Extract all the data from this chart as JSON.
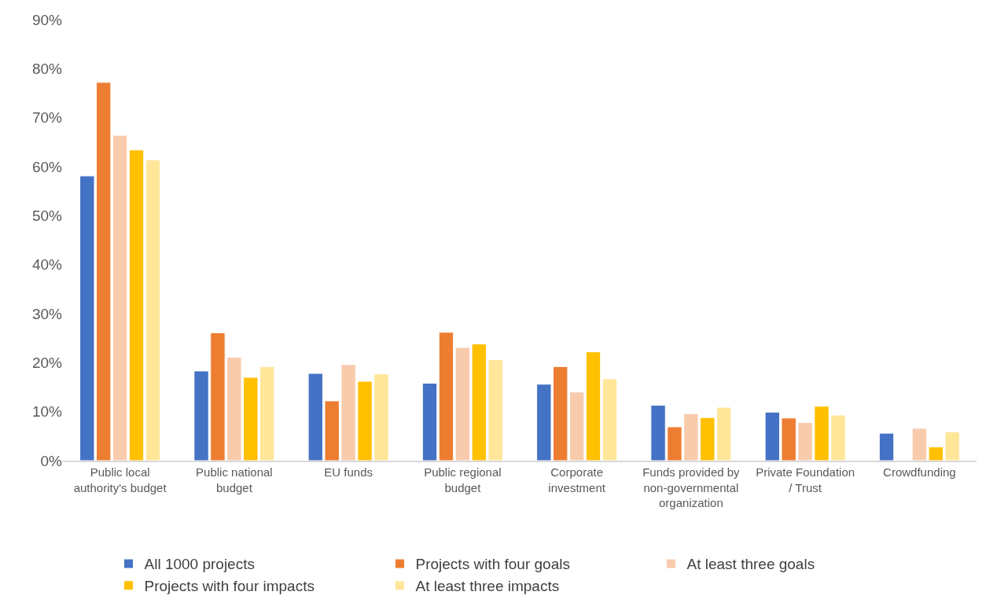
{
  "chart_data": {
    "type": "bar",
    "categories": [
      "Public local authority's budget",
      "Public national budget",
      "EU funds",
      "Public regional budget",
      "Corporate investment",
      "Funds provided by non-governmental organization",
      "Private Foundation / Trust",
      "Crowdfunding"
    ],
    "series": [
      {
        "name": "All 1000 projects",
        "color": "#4472c4",
        "values": [
          58.1,
          18.3,
          17.8,
          15.8,
          15.6,
          11.3,
          9.9,
          5.6
        ]
      },
      {
        "name": "Projects with four goals",
        "color": "#ed7d31",
        "values": [
          77.2,
          26.1,
          12.2,
          26.2,
          19.2,
          6.9,
          8.7,
          null
        ]
      },
      {
        "name": "At least three goals",
        "color": "#f8cbad",
        "values": [
          66.4,
          21.1,
          19.6,
          23.1,
          14.0,
          9.6,
          7.8,
          6.6
        ]
      },
      {
        "name": "Projects with four impacts",
        "color": "#ffc000",
        "values": [
          63.4,
          17.0,
          16.2,
          23.8,
          22.2,
          8.8,
          11.1,
          2.8
        ]
      },
      {
        "name": "At least three impacts",
        "color": "#ffe699",
        "values": [
          61.4,
          19.2,
          17.7,
          20.6,
          16.7,
          10.9,
          9.3,
          5.9
        ]
      }
    ],
    "ylim": [
      0,
      90
    ],
    "yticks": [
      {
        "value": 0,
        "label": "0%"
      },
      {
        "value": 10,
        "label": "10%"
      },
      {
        "value": 20,
        "label": "20%"
      },
      {
        "value": 30,
        "label": "30%"
      },
      {
        "value": 40,
        "label": "40%"
      },
      {
        "value": 50,
        "label": "50%"
      },
      {
        "value": 60,
        "label": "60%"
      },
      {
        "value": 70,
        "label": "70%"
      },
      {
        "value": 80,
        "label": "80%"
      },
      {
        "value": 90,
        "label": "90%"
      }
    ],
    "legend": "bottom"
  }
}
